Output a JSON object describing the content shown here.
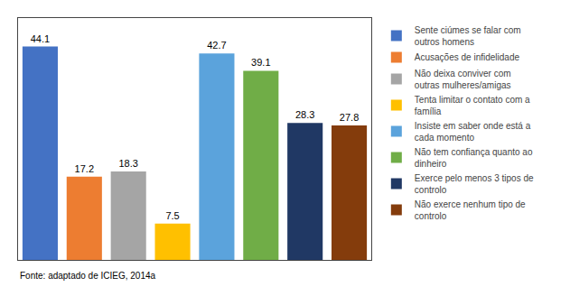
{
  "chart_data": {
    "type": "bar",
    "categories": [
      "Sente ciúmes se falar com\noutros homens",
      "Acusações de infidelidade",
      "Não deixa conviver com\noutras mulheres/amigas",
      "Tenta limitar o contato com a\nfamília",
      "Insiste em saber onde está a\ncada momento",
      "Não tem confiança quanto ao\ndinheiro",
      "Exerce pelo menos 3 tipos de\ncontrolo",
      "Não exerce nenhum tipo de\ncontrolo"
    ],
    "values": [
      44.1,
      17.2,
      18.3,
      7.5,
      42.7,
      39.1,
      28.3,
      27.8
    ],
    "colors": [
      "#4472C4",
      "#ED7D31",
      "#A5A5A5",
      "#FFC000",
      "#5BA3DC",
      "#70AD47",
      "#203864",
      "#843C0C"
    ],
    "ylim": [
      0,
      50
    ],
    "data_labels": true,
    "tick_labels": false,
    "grid": false,
    "legend": "right",
    "annotations": [
      "Fonte: adaptado de ICIEG, 2014a"
    ]
  }
}
